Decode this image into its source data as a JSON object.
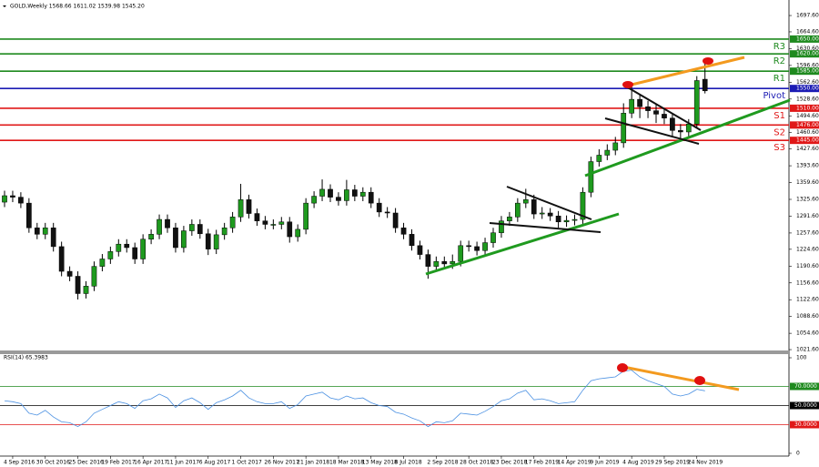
{
  "chart_data": [
    {
      "type": "candlestick",
      "title": "GOLD,Weekly  1568.66 1611.02 1539.98 1545.20",
      "up_color": "#1e9a1e",
      "down_color": "#111111",
      "open": [
        1320,
        1333,
        1330,
        1318,
        1268,
        1255,
        1268,
        1230,
        1180,
        1170,
        1135,
        1150,
        1190,
        1205,
        1220,
        1235,
        1228,
        1205,
        1245,
        1255,
        1285,
        1268,
        1228,
        1262,
        1275,
        1256,
        1225,
        1254,
        1268,
        1290,
        1325,
        1297,
        1282,
        1275,
        1275,
        1280,
        1250,
        1265,
        1318,
        1332,
        1346,
        1330,
        1323,
        1345,
        1332,
        1340,
        1318,
        1300,
        1298,
        1268,
        1255,
        1232,
        1214,
        1190,
        1200,
        1195,
        1200,
        1232,
        1230,
        1222,
        1238,
        1258,
        1282,
        1290,
        1318,
        1325,
        1296,
        1298,
        1292,
        1280,
        1283,
        1285,
        1340,
        1402,
        1415,
        1425,
        1440,
        1500,
        1528,
        1513,
        1505,
        1498,
        1490,
        1465,
        1462,
        1478,
        1568.66
      ],
      "high": [
        1343,
        1343,
        1340,
        1328,
        1278,
        1278,
        1278,
        1240,
        1190,
        1180,
        1160,
        1200,
        1215,
        1230,
        1245,
        1245,
        1238,
        1255,
        1265,
        1295,
        1295,
        1278,
        1272,
        1285,
        1285,
        1266,
        1264,
        1278,
        1300,
        1357,
        1335,
        1307,
        1292,
        1285,
        1290,
        1290,
        1275,
        1328,
        1342,
        1366,
        1356,
        1340,
        1365,
        1355,
        1350,
        1350,
        1328,
        1310,
        1308,
        1278,
        1265,
        1242,
        1224,
        1210,
        1210,
        1214,
        1242,
        1242,
        1240,
        1248,
        1268,
        1292,
        1300,
        1328,
        1347,
        1335,
        1310,
        1308,
        1302,
        1293,
        1295,
        1350,
        1412,
        1427,
        1437,
        1452,
        1520,
        1557,
        1538,
        1525,
        1520,
        1510,
        1500,
        1478,
        1488,
        1575,
        1611.02
      ],
      "low": [
        1310,
        1320,
        1308,
        1258,
        1245,
        1245,
        1220,
        1170,
        1160,
        1123,
        1125,
        1140,
        1180,
        1195,
        1210,
        1218,
        1195,
        1195,
        1235,
        1245,
        1258,
        1218,
        1218,
        1252,
        1246,
        1213,
        1215,
        1244,
        1258,
        1280,
        1287,
        1272,
        1265,
        1265,
        1265,
        1238,
        1240,
        1255,
        1308,
        1322,
        1320,
        1313,
        1313,
        1322,
        1322,
        1308,
        1290,
        1288,
        1258,
        1245,
        1222,
        1204,
        1165,
        1180,
        1185,
        1185,
        1190,
        1220,
        1212,
        1212,
        1228,
        1248,
        1272,
        1280,
        1308,
        1286,
        1286,
        1282,
        1268,
        1270,
        1273,
        1275,
        1330,
        1392,
        1405,
        1415,
        1430,
        1490,
        1490,
        1490,
        1480,
        1478,
        1452,
        1445,
        1450,
        1470,
        1539.98
      ],
      "close": [
        1333,
        1330,
        1318,
        1268,
        1255,
        1268,
        1230,
        1180,
        1170,
        1135,
        1150,
        1190,
        1205,
        1220,
        1235,
        1228,
        1205,
        1245,
        1255,
        1285,
        1268,
        1228,
        1262,
        1275,
        1256,
        1225,
        1254,
        1268,
        1290,
        1325,
        1297,
        1282,
        1275,
        1275,
        1280,
        1250,
        1265,
        1318,
        1332,
        1346,
        1330,
        1323,
        1345,
        1332,
        1340,
        1318,
        1300,
        1298,
        1268,
        1255,
        1232,
        1214,
        1190,
        1200,
        1195,
        1200,
        1232,
        1230,
        1222,
        1238,
        1258,
        1282,
        1290,
        1318,
        1325,
        1296,
        1298,
        1292,
        1280,
        1283,
        1285,
        1340,
        1402,
        1415,
        1425,
        1440,
        1500,
        1528,
        1513,
        1505,
        1498,
        1490,
        1465,
        1462,
        1478,
        1566,
        1545.2
      ],
      "ylim": [
        1018,
        1729
      ],
      "yticks": [
        {
          "value": 1697.6,
          "label": "1697.60"
        },
        {
          "value": 1664.6,
          "label": "1664.60"
        },
        {
          "value": 1630.6,
          "label": "1630.60"
        },
        {
          "value": 1596.6,
          "label": "1596.60"
        },
        {
          "value": 1562.6,
          "label": "1562.60"
        },
        {
          "value": 1528.6,
          "label": "1528.60"
        },
        {
          "value": 1494.6,
          "label": "1494.60"
        },
        {
          "value": 1460.6,
          "label": "1460.60"
        },
        {
          "value": 1427.6,
          "label": "1427.60"
        },
        {
          "value": 1393.6,
          "label": "1393.60"
        },
        {
          "value": 1359.6,
          "label": "1359.60"
        },
        {
          "value": 1325.6,
          "label": "1325.60"
        },
        {
          "value": 1291.6,
          "label": "1291.60"
        },
        {
          "value": 1257.6,
          "label": "1257.60"
        },
        {
          "value": 1224.6,
          "label": "1224.60"
        },
        {
          "value": 1190.6,
          "label": "1190.60"
        },
        {
          "value": 1156.6,
          "label": "1156.60"
        },
        {
          "value": 1122.6,
          "label": "1122.60"
        },
        {
          "value": 1088.6,
          "label": "1088.60"
        },
        {
          "value": 1054.6,
          "label": "1054.60"
        },
        {
          "value": 1021.6,
          "label": "1021.60"
        }
      ],
      "xticks": [
        {
          "value": 1,
          "label": "4 Sep 2016"
        },
        {
          "value": 5,
          "label": "30 Oct 2016"
        },
        {
          "value": 9,
          "label": "25 Dec 2016"
        },
        {
          "value": 13,
          "label": "19 Feb 2017"
        },
        {
          "value": 17,
          "label": "16 Apr 2017"
        },
        {
          "value": 21,
          "label": "11 Jun 2017"
        },
        {
          "value": 25,
          "label": "6 Aug 2017"
        },
        {
          "value": 29,
          "label": "1 Oct 2017"
        },
        {
          "value": 33,
          "label": "26 Nov 2017"
        },
        {
          "value": 37,
          "label": "21 Jan 2018"
        },
        {
          "value": 41,
          "label": "18 Mar 2018"
        },
        {
          "value": 45,
          "label": "13 May 2018"
        },
        {
          "value": 49,
          "label": "8 Jul 2018"
        },
        {
          "value": 53,
          "label": "2 Sep 2018"
        },
        {
          "value": 57,
          "label": "28 Oct 2018"
        },
        {
          "value": 61,
          "label": "23 Dec 2018"
        },
        {
          "value": 65,
          "label": "17 Feb 2019"
        },
        {
          "value": 69,
          "label": "14 Apr 2019"
        },
        {
          "value": 73,
          "label": "9 Jun 2019"
        },
        {
          "value": 77,
          "label": "4 Aug 2019"
        },
        {
          "value": 81,
          "label": "29 Sep 2019"
        },
        {
          "value": 85,
          "label": "24 Nov 2019"
        }
      ],
      "levels": [
        {
          "name": "R3",
          "value": 1650,
          "label": "1650.00",
          "color": "#1f8a1f"
        },
        {
          "name": "R2",
          "value": 1620,
          "label": "1620.00",
          "color": "#1f8a1f"
        },
        {
          "name": "R1",
          "value": 1585,
          "label": "1585.00",
          "color": "#1f8a1f"
        },
        {
          "name": "Pivot",
          "value": 1550,
          "label": "1550.00",
          "color": "#1c1cb4"
        },
        {
          "name": "S1",
          "value": 1510,
          "label": "1510.00",
          "color": "#e01818"
        },
        {
          "name": "S2",
          "value": 1476,
          "label": "1476.00",
          "color": "#e01818"
        },
        {
          "name": "S3",
          "value": 1445,
          "label": "1445.00",
          "color": "#e01818"
        }
      ]
    },
    {
      "type": "line",
      "title": "RSI(14) 65.3983",
      "color": "#4a90e2",
      "values": [
        55,
        54,
        52,
        42,
        40,
        45,
        38,
        33,
        32,
        28,
        33,
        42,
        46,
        50,
        54,
        52,
        47,
        55,
        57,
        62,
        58,
        48,
        55,
        58,
        53,
        46,
        53,
        56,
        60,
        66,
        58,
        54,
        52,
        52,
        54,
        47,
        51,
        60,
        62,
        64,
        58,
        56,
        60,
        57,
        58,
        53,
        50,
        49,
        43,
        41,
        37,
        34,
        28,
        33,
        32,
        34,
        42,
        41,
        40,
        44,
        49,
        55,
        57,
        63,
        66,
        56,
        57,
        55,
        52,
        53,
        54,
        66,
        76,
        78,
        79,
        80,
        86,
        87,
        80,
        76,
        73,
        70,
        62,
        60,
        62,
        67,
        65.3983
      ],
      "ylim": [
        0,
        100
      ],
      "yticks": [
        0,
        100
      ],
      "levels": [
        {
          "value": 70,
          "label": "70.0000",
          "color": "#1f8a1f"
        },
        {
          "value": 50,
          "label": "50.0000",
          "color": "#000000"
        },
        {
          "value": 30,
          "label": "30.0000",
          "color": "#e01818"
        }
      ]
    }
  ]
}
